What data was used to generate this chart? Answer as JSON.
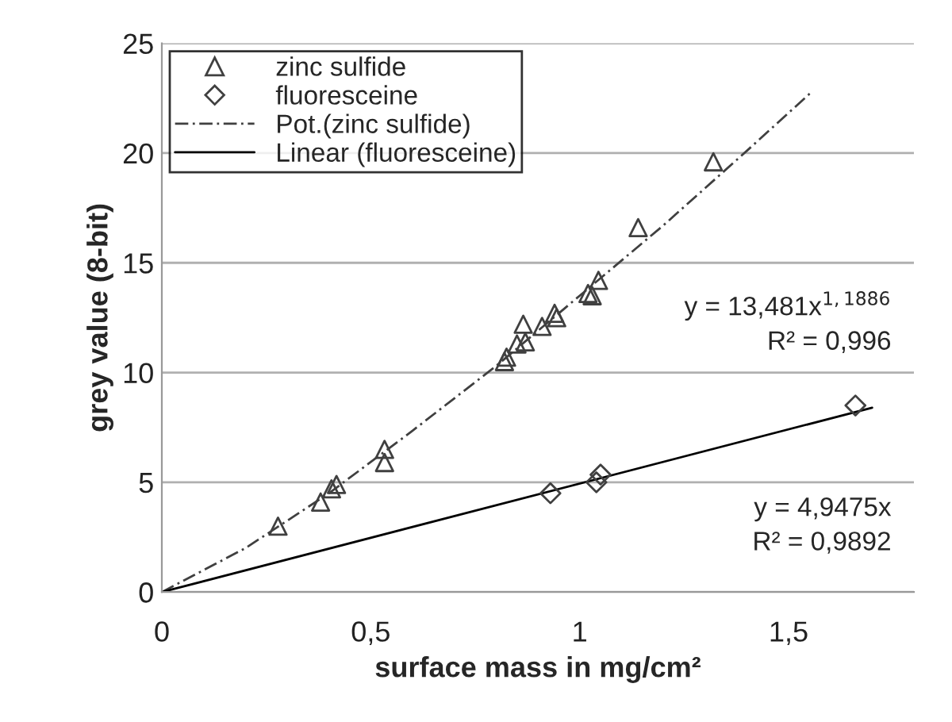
{
  "chart_data": {
    "type": "scatter",
    "xlabel": "surface mass in mg/cm²",
    "ylabel": "grey value (8-bit)",
    "xlim": [
      0,
      1.8
    ],
    "xticks": [
      0,
      {
        "value": 0.5,
        "label": "0,5"
      },
      1,
      {
        "value": 1.5,
        "label": "1,5"
      }
    ],
    "ylim": [
      0,
      25
    ],
    "yticks": [
      0,
      5,
      10,
      15,
      20,
      25
    ],
    "grid": "y",
    "legend": "top left",
    "series": [
      {
        "name": "zinc sulfide",
        "marker": "triangle",
        "color": "#404040",
        "x": [
          0.278,
          0.38,
          0.406,
          0.418,
          0.533,
          0.533,
          0.82,
          0.825,
          0.83,
          0.85,
          0.865,
          0.87,
          0.91,
          0.94,
          0.945,
          1.02,
          1.03,
          1.045,
          1.14,
          1.32
        ],
        "values": [
          3.0,
          4.1,
          4.7,
          4.9,
          6.5,
          5.9,
          10.5,
          10.7,
          null,
          11.3,
          12.2,
          11.4,
          12.1,
          12.7,
          12.5,
          13.6,
          13.5,
          14.2,
          16.6,
          19.6
        ]
      },
      {
        "name": "fluoresceine",
        "marker": "diamond",
        "color": "#404040",
        "x": [
          0.93,
          1.04,
          1.05,
          1.66
        ],
        "values": [
          4.5,
          5.0,
          5.35,
          8.5
        ]
      },
      {
        "name": "Pot.(zinc sulfide)",
        "type": "line",
        "line_style": "dashed",
        "color": "#404040",
        "x": [
          0,
          0.2,
          0.4,
          0.6,
          0.8,
          1.0,
          1.2,
          1.4,
          1.556
        ],
        "values": [
          0,
          2.0,
          4.5,
          7.35,
          10.3,
          13.5,
          16.7,
          20.1,
          22.8
        ]
      },
      {
        "name": "Linear (fluoresceine)",
        "type": "line",
        "line_style": "solid",
        "color": "#000000",
        "x": [
          0,
          1.7
        ],
        "values": [
          0,
          8.4
        ]
      }
    ],
    "annotations": [
      "y = 13,481x$^{1,1886}$\nR² = 0,996",
      "y = 4,9475x\nR² = 0,9892"
    ]
  }
}
